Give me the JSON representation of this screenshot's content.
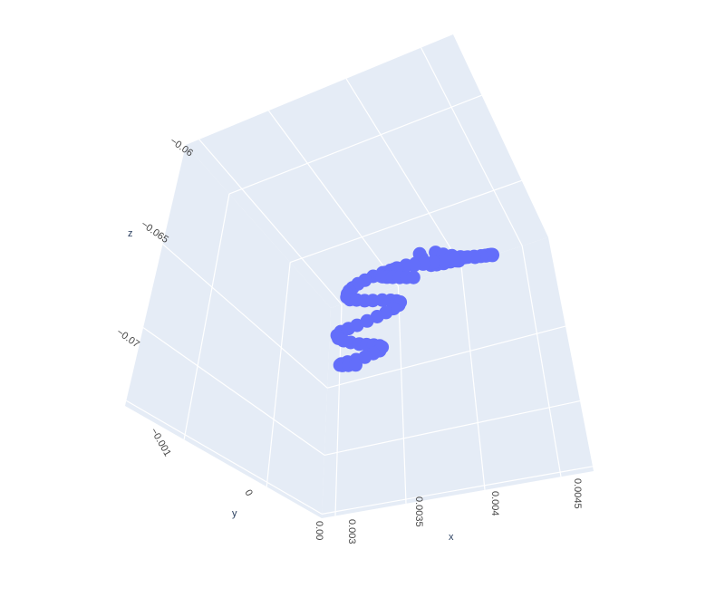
{
  "chart_data": {
    "type": "scatter3d",
    "title": "",
    "marker_color": "#636efa",
    "pane_color": "#e5ecf6",
    "grid_color": "#ffffff",
    "axes": {
      "x": {
        "label": "x",
        "ticks": [
          "0.003",
          "0.0035",
          "0.004",
          "0.0045"
        ]
      },
      "y": {
        "label": "y",
        "ticks": [
          "−0.001",
          "0"
        ]
      },
      "z": {
        "label": "z",
        "ticks": [
          "−0.06",
          "−0.065",
          "−0.07"
        ]
      }
    },
    "partial_tick": "0.00",
    "points": [
      [
        0.00381,
        -0.0009,
        -0.0641
      ],
      [
        0.00383,
        -0.00085,
        -0.0646
      ],
      [
        0.00386,
        -0.00078,
        -0.0652
      ],
      [
        0.00392,
        -0.0007,
        -0.0658
      ],
      [
        0.00398,
        -0.0006,
        -0.0662
      ],
      [
        0.00405,
        -0.00052,
        -0.0665
      ],
      [
        0.00412,
        -0.00043,
        -0.0668
      ],
      [
        0.00418,
        -0.00035,
        -0.0671
      ],
      [
        0.00421,
        -0.00028,
        -0.0674
      ],
      [
        0.00418,
        -0.0002,
        -0.0676
      ],
      [
        0.00412,
        -0.00012,
        -0.0678
      ],
      [
        0.00405,
        -5e-05,
        -0.068
      ],
      [
        0.00398,
        2e-05,
        -0.0682
      ],
      [
        0.00392,
        8e-05,
        -0.0684
      ],
      [
        0.00385,
        0.00013,
        -0.0686
      ],
      [
        0.00376,
        0.0002,
        -0.069
      ],
      [
        0.00368,
        0.00028,
        -0.0694
      ],
      [
        0.00361,
        0.00035,
        -0.0698
      ],
      [
        0.00355,
        0.00041,
        -0.0702
      ],
      [
        0.0035,
        0.00047,
        -0.0706
      ],
      [
        0.00346,
        0.00052,
        -0.071
      ],
      [
        0.00344,
        0.00058,
        -0.0714
      ],
      [
        0.00343,
        0.00063,
        -0.0718
      ],
      [
        0.00343,
        0.00068,
        -0.0722
      ],
      [
        0.00346,
        0.00073,
        -0.0726
      ],
      [
        0.00352,
        0.00078,
        -0.0729
      ],
      [
        0.00359,
        0.00082,
        -0.0732
      ],
      [
        0.00366,
        0.00085,
        -0.0734
      ],
      [
        0.00374,
        0.00088,
        -0.0736
      ],
      [
        0.00381,
        0.0009,
        -0.0738
      ],
      [
        0.00386,
        0.00092,
        -0.074
      ],
      [
        0.00389,
        0.00094,
        -0.0742
      ],
      [
        0.00388,
        0.00097,
        -0.0745
      ],
      [
        0.00384,
        0.001,
        -0.0748
      ],
      [
        0.00378,
        0.00103,
        -0.0751
      ],
      [
        0.00371,
        0.00106,
        -0.0754
      ],
      [
        0.00363,
        0.00109,
        -0.0757
      ],
      [
        0.00355,
        0.00112,
        -0.076
      ],
      [
        0.00348,
        0.00114,
        -0.0762
      ],
      [
        0.00342,
        0.00116,
        -0.0764
      ],
      [
        0.00339,
        0.00118,
        -0.0767
      ],
      [
        0.0034,
        0.0012,
        -0.077
      ],
      [
        0.00344,
        0.00122,
        -0.0773
      ],
      [
        0.0035,
        0.00124,
        -0.0776
      ],
      [
        0.00357,
        0.00126,
        -0.0779
      ],
      [
        0.00363,
        0.00128,
        -0.0781
      ],
      [
        0.00369,
        0.0013,
        -0.0783
      ],
      [
        0.00374,
        0.00132,
        -0.0785
      ],
      [
        0.00376,
        0.00134,
        -0.0787
      ],
      [
        0.00374,
        0.00136,
        -0.079
      ],
      [
        0.00369,
        0.00138,
        -0.0792
      ],
      [
        0.00362,
        0.00139,
        -0.0794
      ],
      [
        0.00355,
        0.0014,
        -0.0795
      ],
      [
        0.00348,
        0.00141,
        -0.0796
      ],
      [
        0.00343,
        0.00142,
        -0.0797
      ],
      [
        0.00342,
        0.00143,
        -0.0798
      ],
      [
        0.00344,
        0.00144,
        -0.0799
      ],
      [
        0.00349,
        0.00145,
        -0.08
      ],
      [
        0.00355,
        0.00146,
        -0.0801
      ],
      [
        0.00393,
        -0.00095,
        -0.064
      ],
      [
        0.004,
        -0.00088,
        -0.0645
      ],
      [
        0.00408,
        -0.0008,
        -0.065
      ],
      [
        0.00416,
        -0.00072,
        -0.0655
      ],
      [
        0.00423,
        -0.00064,
        -0.0659
      ],
      [
        0.0043,
        -0.00056,
        -0.0663
      ],
      [
        0.00436,
        -0.00048,
        -0.0666
      ],
      [
        0.00441,
        -0.0004,
        -0.0669
      ],
      [
        0.00445,
        -0.00032,
        -0.0672
      ],
      [
        0.00448,
        -0.00025,
        -0.0675
      ],
      [
        0.0045,
        -0.00018,
        -0.0678
      ],
      [
        0.00451,
        -0.00012,
        -0.068
      ],
      [
        0.00452,
        -6e-05,
        -0.0682
      ],
      [
        0.00452,
        0.0,
        -0.0684
      ],
      [
        0.00451,
        5e-05,
        -0.0686
      ],
      [
        0.00449,
        0.0001,
        -0.0688
      ],
      [
        0.00446,
        0.00014,
        -0.0689
      ],
      [
        0.00441,
        0.00018,
        -0.069
      ],
      [
        0.00434,
        0.00022,
        -0.0691
      ],
      [
        0.00426,
        0.00025,
        -0.0692
      ],
      [
        0.00418,
        0.00028,
        -0.0693
      ],
      [
        0.0041,
        0.00031,
        -0.0694
      ],
      [
        0.00402,
        0.00034,
        -0.0695
      ],
      [
        0.00395,
        0.00037,
        -0.0696
      ],
      [
        0.00388,
        0.0004,
        -0.0697
      ],
      [
        0.00382,
        0.00043,
        -0.0698
      ],
      [
        0.00377,
        0.00046,
        -0.07
      ],
      [
        0.00373,
        0.00049,
        -0.0702
      ],
      [
        0.00371,
        0.00052,
        -0.0704
      ],
      [
        0.0037,
        0.00055,
        -0.0706
      ],
      [
        0.00372,
        0.00058,
        -0.0708
      ],
      [
        0.00376,
        0.00061,
        -0.071
      ],
      [
        0.00381,
        0.00064,
        -0.0712
      ],
      [
        0.00387,
        0.00067,
        -0.0714
      ],
      [
        0.00393,
        0.0007,
        -0.0716
      ],
      [
        0.00399,
        0.00073,
        -0.0718
      ]
    ]
  }
}
